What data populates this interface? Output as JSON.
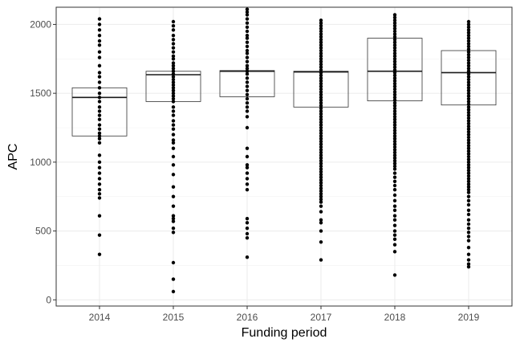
{
  "chart_data": {
    "type": "box-with-points",
    "xlabel": "Funding period",
    "ylabel": "APC",
    "ylim": [
      -45,
      2125
    ],
    "y_ticks": [
      0,
      500,
      1000,
      1500,
      2000
    ],
    "categories": [
      "2014",
      "2015",
      "2016",
      "2017",
      "2018",
      "2019"
    ],
    "grid": true,
    "boxes": [
      {
        "category": "2014",
        "q1": 1190,
        "median": 1470,
        "q3": 1540
      },
      {
        "category": "2015",
        "q1": 1440,
        "median": 1635,
        "q3": 1660
      },
      {
        "category": "2016",
        "q1": 1475,
        "median": 1660,
        "q3": 1665
      },
      {
        "category": "2017",
        "q1": 1400,
        "median": 1655,
        "q3": 1660
      },
      {
        "category": "2018",
        "q1": 1445,
        "median": 1660,
        "q3": 1900
      },
      {
        "category": "2019",
        "q1": 1415,
        "median": 1650,
        "q3": 1810
      }
    ],
    "points": [
      {
        "category": "2014",
        "values": [
          2040,
          2000,
          1960,
          1920,
          1880,
          1850,
          1800,
          1760,
          1700,
          1650,
          1620,
          1580,
          1540,
          1500,
          1470,
          1440,
          1400,
          1370,
          1340,
          1310,
          1270,
          1240,
          1210,
          1190,
          1170,
          1140,
          1050,
          1000,
          960,
          920,
          880,
          840,
          800,
          770,
          740,
          610,
          470,
          330
        ]
      },
      {
        "category": "2015",
        "values": [
          2020,
          1990,
          1960,
          1920,
          1890,
          1860,
          1830,
          1800,
          1770,
          1750,
          1720,
          1700,
          1680,
          1660,
          1640,
          1620,
          1600,
          1580,
          1560,
          1540,
          1520,
          1500,
          1480,
          1460,
          1440,
          1400,
          1370,
          1340,
          1300,
          1270,
          1240,
          1200,
          1160,
          1140,
          1100,
          1040,
          980,
          910,
          820,
          750,
          680,
          610,
          590,
          570,
          520,
          490,
          270,
          150,
          60
        ]
      },
      {
        "category": "2016",
        "values": [
          2110,
          2090,
          2070,
          2040,
          2010,
          1980,
          1950,
          1920,
          1900,
          1870,
          1840,
          1810,
          1790,
          1760,
          1730,
          1700,
          1680,
          1660,
          1640,
          1610,
          1580,
          1550,
          1520,
          1490,
          1460,
          1430,
          1400,
          1370,
          1330,
          1250,
          1100,
          1040,
          980,
          960,
          920,
          880,
          840,
          800,
          590,
          560,
          520,
          480,
          450,
          310
        ]
      },
      {
        "category": "2017",
        "values": [
          2030,
          2010,
          1990,
          1970,
          1950,
          1930,
          1910,
          1890,
          1870,
          1850,
          1830,
          1810,
          1790,
          1770,
          1750,
          1730,
          1710,
          1690,
          1670,
          1650,
          1630,
          1610,
          1590,
          1570,
          1550,
          1530,
          1510,
          1490,
          1470,
          1450,
          1430,
          1410,
          1390,
          1370,
          1350,
          1330,
          1310,
          1290,
          1270,
          1250,
          1230,
          1210,
          1190,
          1170,
          1150,
          1130,
          1110,
          1090,
          1070,
          1050,
          1030,
          1010,
          990,
          970,
          950,
          930,
          910,
          890,
          870,
          850,
          830,
          810,
          790,
          770,
          750,
          730,
          710,
          680,
          640,
          580,
          560,
          500,
          420,
          290
        ]
      },
      {
        "category": "2018",
        "values": [
          2070,
          2050,
          2030,
          2010,
          1990,
          1970,
          1950,
          1930,
          1910,
          1890,
          1870,
          1850,
          1830,
          1810,
          1790,
          1770,
          1750,
          1730,
          1710,
          1690,
          1670,
          1650,
          1630,
          1610,
          1590,
          1570,
          1550,
          1530,
          1510,
          1490,
          1470,
          1450,
          1430,
          1410,
          1390,
          1370,
          1350,
          1330,
          1310,
          1290,
          1270,
          1250,
          1230,
          1210,
          1190,
          1170,
          1150,
          1130,
          1110,
          1090,
          1070,
          1050,
          1030,
          1010,
          990,
          970,
          950,
          920,
          890,
          860,
          830,
          800,
          760,
          720,
          680,
          650,
          610,
          580,
          540,
          500,
          470,
          440,
          400,
          350,
          180
        ]
      },
      {
        "category": "2019",
        "values": [
          2020,
          2000,
          1980,
          1960,
          1940,
          1920,
          1900,
          1880,
          1860,
          1840,
          1820,
          1800,
          1780,
          1760,
          1740,
          1720,
          1700,
          1680,
          1660,
          1640,
          1620,
          1600,
          1580,
          1560,
          1540,
          1520,
          1500,
          1480,
          1460,
          1440,
          1420,
          1400,
          1380,
          1360,
          1340,
          1320,
          1300,
          1280,
          1260,
          1240,
          1220,
          1200,
          1180,
          1160,
          1140,
          1120,
          1100,
          1080,
          1060,
          1040,
          1020,
          1000,
          980,
          960,
          940,
          920,
          900,
          880,
          860,
          840,
          820,
          800,
          780,
          750,
          720,
          690,
          650,
          620,
          580,
          550,
          520,
          490,
          460,
          430,
          380,
          330,
          290,
          260,
          240
        ]
      }
    ]
  }
}
